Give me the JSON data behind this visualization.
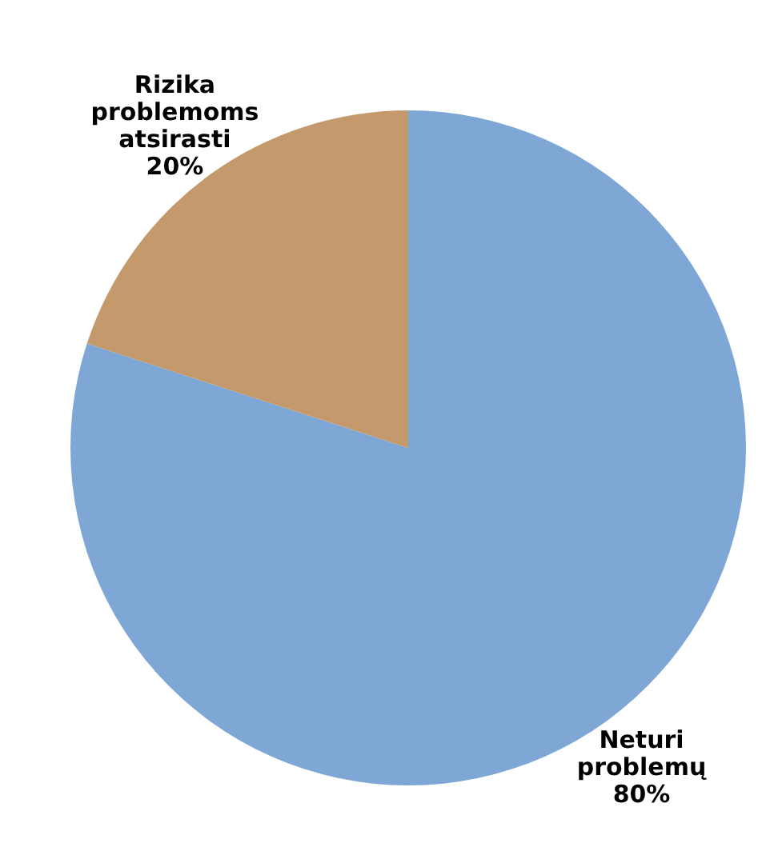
{
  "chart_data": {
    "type": "pie",
    "categories": [
      "Neturi problemų",
      "Rizika problemoms atsirasti"
    ],
    "values": [
      80,
      20
    ],
    "colors": [
      "#7ea7d6",
      "#c49a6c"
    ],
    "value_labels": [
      "80%",
      "20%"
    ]
  }
}
